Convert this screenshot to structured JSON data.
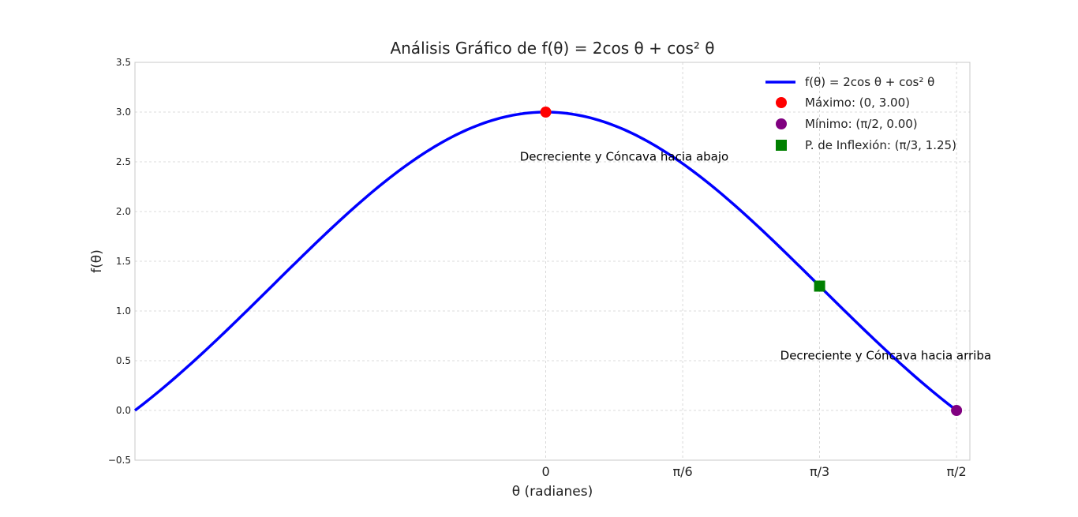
{
  "chart_data": {
    "type": "line",
    "title": "Análisis Gráfico de f(θ) = 2cos θ + cos² θ",
    "xlabel": "θ (radianes)",
    "ylabel": "f(θ)",
    "x_tick_labels": [
      "0",
      "π/6",
      "π/3",
      "π/2"
    ],
    "x_ticks_rad": [
      0,
      0.5236,
      1.0472,
      1.5708
    ],
    "y_ticks": [
      -0.5,
      0.0,
      0.5,
      1.0,
      1.5,
      2.0,
      2.5,
      3.0,
      3.5
    ],
    "y_tick_labels": [
      "−0.5",
      "0.0",
      "0.5",
      "1.0",
      "1.5",
      "2.0",
      "2.5",
      "3.0",
      "3.5"
    ],
    "xlim": [
      -1.5708,
      1.6218
    ],
    "ylim": [
      -0.5,
      3.5
    ],
    "grid": true,
    "legend_position": "top-right",
    "series": [
      {
        "name": "f(θ) = 2cos θ + cos² θ",
        "color": "#0000ff",
        "x_range": [
          -1.5708,
          1.5708
        ],
        "samples": 200
      }
    ],
    "points": [
      {
        "name": "Máximo: (0, 3.00)",
        "x": 0,
        "y": 3.0,
        "color": "#ff0000",
        "marker": "circle"
      },
      {
        "name": "Mínimo: (π/2, 0.00)",
        "x": 1.5708,
        "y": 0.0,
        "color": "#800080",
        "marker": "circle"
      },
      {
        "name": "P. de Inflexión: (π/3, 1.25)",
        "x": 1.0472,
        "y": 1.25,
        "color": "#008000",
        "marker": "square"
      }
    ],
    "annotations": [
      {
        "text": "Decreciente y Cóncava hacia abajo",
        "x": 0.3,
        "y": 2.55
      },
      {
        "text": "Decreciente y Cóncava hacia arriba",
        "x": 1.3,
        "y": 0.55
      }
    ]
  }
}
